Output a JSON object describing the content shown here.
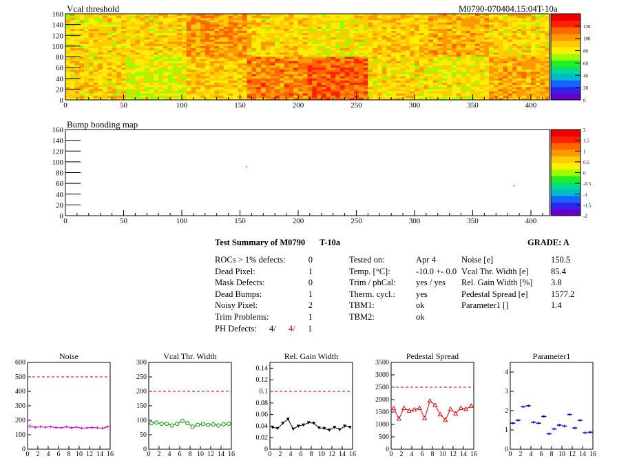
{
  "header": {
    "module_tag": "M0790-070404.15:04T-10a"
  },
  "colors": {
    "palette": [
      "#6600cc",
      "#3322ee",
      "#1166ff",
      "#00bbcc",
      "#00dd88",
      "#22ee22",
      "#99ff00",
      "#ffee00",
      "#ffcc00",
      "#ff9900",
      "#ff6600",
      "#ff2200",
      "#ee0000"
    ],
    "noise": "#cc00cc",
    "vcal": "#009900",
    "relgain": "#000000",
    "pedestal": "#dd0000",
    "param1": "#0000cc",
    "reference": "#cc0000",
    "ph_defects_2": "#dd0000",
    "ph_defects_3": "#0000dd"
  },
  "chart_data": [
    {
      "id": "vcal",
      "type": "heatmap",
      "title": "Vcal threshold",
      "xlim": [
        0,
        416
      ],
      "ylim": [
        0,
        160
      ],
      "xticks": [
        "0",
        "50",
        "100",
        "150",
        "200",
        "250",
        "300",
        "350",
        "400"
      ],
      "yticks": [
        "0",
        "20",
        "40",
        "60",
        "80",
        "100",
        "120",
        "140",
        "160"
      ],
      "colorbar_ticks": [
        "0",
        "20",
        "40",
        "60",
        "80",
        "100",
        "120"
      ],
      "roc_mean_values": [
        [
          88,
          90,
          105,
          90,
          85,
          92,
          100,
          88
        ],
        [
          90,
          80,
          93,
          110,
          118,
          88,
          85,
          100
        ]
      ],
      "note_rows": "first row: y 80-160, second row: y 0-80; columns are 52 px wide ROCs"
    },
    {
      "id": "bump",
      "type": "scatter",
      "title": "Bump bonding map",
      "xlim": [
        0,
        416
      ],
      "ylim": [
        0,
        160
      ],
      "xticks": [
        "0",
        "50",
        "100",
        "150",
        "200",
        "250",
        "300",
        "350",
        "400"
      ],
      "yticks": [
        "0",
        "20",
        "40",
        "60",
        "80",
        "100",
        "120",
        "140",
        "160"
      ],
      "colorbar_ticks": [
        "-2",
        "-1.5",
        "-1",
        "-0.5",
        "0",
        "0.5",
        "1",
        "1.5",
        "2"
      ],
      "points": [
        {
          "x": 155,
          "y": 92
        },
        {
          "x": 385,
          "y": 57
        }
      ]
    },
    {
      "id": "noise",
      "type": "line",
      "title": "Noise",
      "xlim": [
        0,
        16
      ],
      "ylim": [
        0,
        600
      ],
      "reference": 500,
      "xticks": [
        "0",
        "2",
        "4",
        "6",
        "8",
        "10",
        "12",
        "14",
        "16"
      ],
      "yticks": [
        "0",
        "100",
        "200",
        "300",
        "400",
        "500",
        "600"
      ],
      "x": [
        0,
        1,
        2,
        3,
        4,
        5,
        6,
        7,
        8,
        9,
        10,
        11,
        12,
        13,
        14,
        15
      ],
      "values": [
        160,
        152,
        155,
        152,
        155,
        150,
        148,
        155,
        148,
        153,
        145,
        147,
        150,
        148,
        145,
        155
      ],
      "errors": [
        30,
        20,
        20,
        20,
        20,
        20,
        20,
        20,
        20,
        20,
        20,
        20,
        20,
        20,
        20,
        20
      ]
    },
    {
      "id": "vcal_width",
      "type": "line",
      "title": "Vcal Thr. Width",
      "xlim": [
        0,
        16
      ],
      "ylim": [
        0,
        300
      ],
      "reference": 200,
      "xticks": [
        "0",
        "2",
        "4",
        "6",
        "8",
        "10",
        "12",
        "14",
        "16"
      ],
      "yticks": [
        "0",
        "50",
        "100",
        "150",
        "200",
        "250",
        "300"
      ],
      "x": [
        0,
        1,
        2,
        3,
        4,
        5,
        6,
        7,
        8,
        9,
        10,
        11,
        12,
        13,
        14,
        15
      ],
      "values": [
        90,
        92,
        88,
        88,
        82,
        88,
        98,
        90,
        78,
        84,
        87,
        84,
        86,
        82,
        86,
        88
      ]
    },
    {
      "id": "relgain",
      "type": "line",
      "title": "Rel. Gain Width",
      "xlim": [
        0,
        16
      ],
      "ylim": [
        0,
        0.15
      ],
      "reference": 0.1,
      "xticks": [
        "0",
        "2",
        "4",
        "6",
        "8",
        "10",
        "12",
        "14",
        "16"
      ],
      "yticks": [
        "0",
        "0.02",
        "0.04",
        "0.06",
        "0.08",
        "0.1",
        "0.12",
        "0.14"
      ],
      "x": [
        0,
        1,
        2,
        3,
        4,
        5,
        6,
        7,
        8,
        9,
        10,
        11,
        12,
        13,
        14,
        15
      ],
      "values": [
        0.038,
        0.036,
        0.045,
        0.052,
        0.035,
        0.04,
        0.042,
        0.046,
        0.045,
        0.037,
        0.036,
        0.033,
        0.038,
        0.034,
        0.04,
        0.038
      ]
    },
    {
      "id": "pedestal",
      "type": "line",
      "title": "Pedestal Spread",
      "xlim": [
        0,
        16
      ],
      "ylim": [
        0,
        3500
      ],
      "reference": 2500,
      "xticks": [
        "0",
        "2",
        "4",
        "6",
        "8",
        "10",
        "12",
        "14",
        "16"
      ],
      "yticks": [
        "0",
        "500",
        "1000",
        "1500",
        "2000",
        "2500",
        "3000",
        "3500"
      ],
      "x": [
        0,
        1,
        2,
        3,
        4,
        5,
        6,
        7,
        8,
        9,
        10,
        11,
        12,
        13,
        14,
        15
      ],
      "values": [
        1650,
        1230,
        1660,
        1550,
        1600,
        1660,
        1250,
        1950,
        1780,
        1400,
        1180,
        1620,
        1440,
        1660,
        1620,
        1750
      ]
    },
    {
      "id": "param1",
      "type": "scatter",
      "title": "Parameter1",
      "xlim": [
        0,
        16
      ],
      "ylim": [
        0,
        4.5
      ],
      "xticks": [
        "0",
        "2",
        "4",
        "6",
        "8",
        "10",
        "12",
        "14",
        "16"
      ],
      "yticks": [
        "0",
        "1",
        "2",
        "3",
        "4"
      ],
      "x": [
        0,
        1,
        2,
        3,
        4,
        5,
        6,
        7,
        8,
        9,
        10,
        11,
        12,
        13,
        14,
        15
      ],
      "values": [
        1.35,
        1.5,
        2.2,
        2.25,
        1.4,
        1.35,
        1.7,
        0.8,
        1.05,
        1.25,
        1.2,
        1.8,
        1.1,
        1.5,
        0.85,
        0.88
      ]
    }
  ],
  "summary": {
    "title": "Test Summary of M0790",
    "tag": "T-10a",
    "grade": "GRADE:  A",
    "defects": [
      {
        "label": "ROCs > 1% defects:",
        "value": "0"
      },
      {
        "label": "Dead Pixel:",
        "value": "1"
      },
      {
        "label": "Mask Defects:",
        "value": "0"
      },
      {
        "label": "Dead Bumps:",
        "value": "1"
      },
      {
        "label": "Noisy Pixel:",
        "value": "2"
      },
      {
        "label": "Trim Problems:",
        "value": "1"
      }
    ],
    "ph_defects": {
      "label": "PH Defects:",
      "v1": "4/",
      "v2": "4/",
      "v3": "1"
    },
    "conditions": [
      {
        "label": "Tested on:",
        "value": "Apr 4"
      },
      {
        "label": "Temp. [°C]:",
        "value": "-10.0 +- 0.0"
      },
      {
        "label": "Trim / phCal:",
        "value": "yes / yes"
      },
      {
        "label": "Therm. cycl.:",
        "value": "yes"
      },
      {
        "label": "TBM1:",
        "value": "ok"
      },
      {
        "label": "TBM2:",
        "value": "ok"
      }
    ],
    "params": [
      {
        "label": "Noise [e]",
        "value": "150.5"
      },
      {
        "label": "Vcal Thr. Width [e]",
        "value": "85.4"
      },
      {
        "label": "Rel. Gain Width [%]",
        "value": "3.8"
      },
      {
        "label": "Pedestal Spread [e]",
        "value": "1577.2"
      },
      {
        "label": "Parameter1 []",
        "value": "1.4"
      }
    ]
  }
}
